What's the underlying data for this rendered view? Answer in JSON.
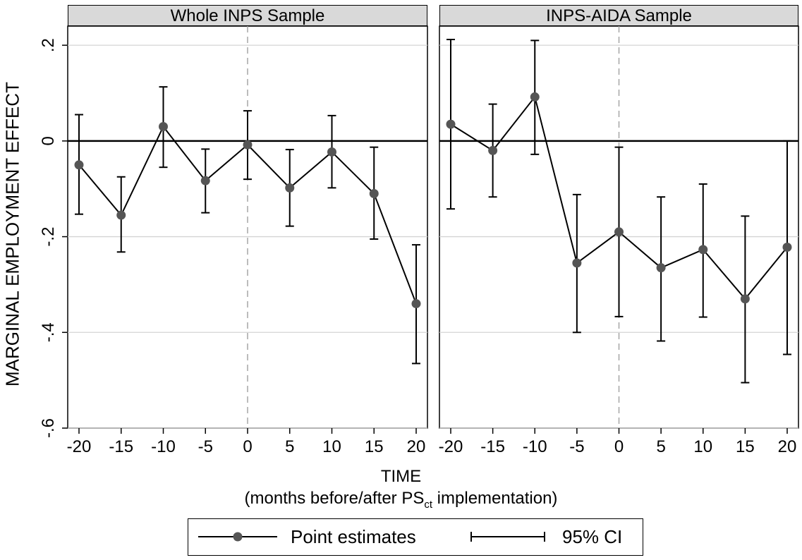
{
  "chart_data": {
    "type": "line",
    "ylabel": "MARGINAL EMPLOYMENT EFFECT",
    "xlabel": "TIME",
    "xlabel_sub_prefix": "(months before/after PS",
    "xlabel_sub_subscript": "ct",
    "xlabel_sub_suffix": " implementation)",
    "ylim": [
      -0.6,
      0.24
    ],
    "yticks": [
      0.2,
      0,
      -0.2,
      -0.4,
      -0.6
    ],
    "ytick_labels": [
      ".2",
      "0",
      "-.2",
      "-.4",
      "-.6"
    ],
    "xticks": [
      -20,
      -15,
      -10,
      -5,
      0,
      5,
      10,
      15,
      20
    ],
    "xtick_labels": [
      "-20",
      "-15",
      "-10",
      "-5",
      "0",
      "5",
      "10",
      "15",
      "20"
    ],
    "reference_lines": {
      "horizontal_y": 0,
      "vertical_x": 0
    },
    "grid": true,
    "legend": {
      "position": "bottom",
      "entries": [
        "Point estimates",
        "95% CI"
      ]
    },
    "panels": [
      {
        "title": "Whole INPS Sample",
        "x": [
          -20,
          -15,
          -10,
          -5,
          0,
          5,
          10,
          15,
          20
        ],
        "estimate": [
          -0.05,
          -0.155,
          0.03,
          -0.083,
          -0.008,
          -0.098,
          -0.023,
          -0.11,
          -0.34
        ],
        "ci_low": [
          -0.153,
          -0.232,
          -0.055,
          -0.15,
          -0.08,
          -0.178,
          -0.098,
          -0.205,
          -0.465
        ],
        "ci_high": [
          0.055,
          -0.075,
          0.113,
          -0.017,
          0.063,
          -0.018,
          0.053,
          -0.013,
          -0.217
        ]
      },
      {
        "title": "INPS-AIDA Sample",
        "x": [
          -20,
          -15,
          -10,
          -5,
          0,
          5,
          10,
          15,
          20
        ],
        "estimate": [
          0.035,
          -0.02,
          0.092,
          -0.255,
          -0.19,
          -0.265,
          -0.227,
          -0.33,
          -0.222
        ],
        "ci_low": [
          -0.142,
          -0.117,
          -0.028,
          -0.4,
          -0.367,
          -0.418,
          -0.368,
          -0.505,
          -0.446
        ],
        "ci_high": [
          0.212,
          0.077,
          0.21,
          -0.112,
          -0.013,
          -0.117,
          -0.09,
          -0.157,
          0
        ]
      }
    ]
  }
}
